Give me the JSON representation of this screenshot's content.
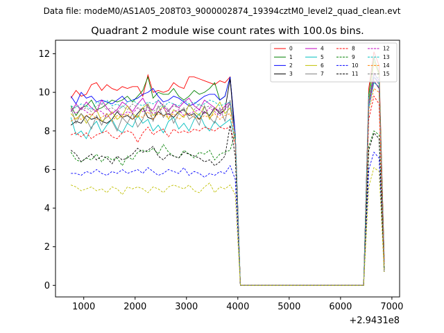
{
  "chart_data": {
    "type": "line",
    "suptitle": "Data file: modeM0/AS1A05_208T03_9000002874_19394cztM0_level2_quad_clean.evt",
    "title": "Quadrant 2 module wise count rates with 100.0s bins.",
    "xlabel": "",
    "ylabel": "",
    "x_offset_text": "+2.9431e8",
    "xlim": [
      450,
      7150
    ],
    "ylim": [
      -0.6,
      12.7
    ],
    "xticks": [
      1000,
      2000,
      3000,
      4000,
      5000,
      6000,
      7000
    ],
    "yticks": [
      0,
      2,
      4,
      6,
      8,
      10,
      12
    ],
    "x": [
      750,
      850,
      950,
      1050,
      1150,
      1250,
      1350,
      1450,
      1550,
      1650,
      1750,
      1850,
      1950,
      2050,
      2150,
      2250,
      2350,
      2450,
      2550,
      2650,
      2750,
      2850,
      2950,
      3050,
      3150,
      3250,
      3350,
      3450,
      3550,
      3650,
      3750,
      3850,
      3950,
      4050,
      4150,
      4250,
      4350,
      4450,
      4550,
      4650,
      4750,
      4850,
      4950,
      5050,
      5150,
      5250,
      5350,
      5450,
      5550,
      5650,
      5750,
      5850,
      5950,
      6050,
      6150,
      6250,
      6350,
      6450,
      6550,
      6650,
      6750,
      6850
    ],
    "legend": {
      "location": "upper right",
      "columns": 4
    },
    "series": [
      {
        "name": "0",
        "color": "#ff0000",
        "dash": "solid",
        "values": [
          9.7,
          10.1,
          9.8,
          9.9,
          10.4,
          10.5,
          10.1,
          10.4,
          10.2,
          10.1,
          10.3,
          10.2,
          10.3,
          10.3,
          9.8,
          10.9,
          10.0,
          10.1,
          10.0,
          10.1,
          10.5,
          10.3,
          10.2,
          10.8,
          10.8,
          10.7,
          10.6,
          10.5,
          10.4,
          10.6,
          10.5,
          10.8,
          7.7,
          0,
          0,
          0,
          0,
          0,
          0,
          0,
          0,
          0,
          0,
          0,
          0,
          0,
          0,
          0,
          0,
          0,
          0,
          0,
          0,
          0,
          0,
          0,
          0,
          0,
          10.2,
          12.1,
          11.4,
          1.4
        ]
      },
      {
        "name": "1",
        "color": "#008000",
        "dash": "solid",
        "values": [
          9.3,
          8.8,
          9.2,
          9.3,
          9.6,
          9.1,
          9.2,
          9.4,
          9.6,
          9.5,
          9.6,
          9.8,
          9.5,
          9.8,
          10.1,
          10.8,
          9.7,
          10.0,
          9.9,
          9.9,
          10.2,
          9.8,
          9.6,
          9.8,
          10.1,
          9.9,
          10.0,
          10.2,
          10.5,
          9.6,
          9.8,
          10.8,
          7.8,
          0,
          0,
          0,
          0,
          0,
          0,
          0,
          0,
          0,
          0,
          0,
          0,
          0,
          0,
          0,
          0,
          0,
          0,
          0,
          0,
          0,
          0,
          0,
          0,
          0,
          9.9,
          11.8,
          11.0,
          1.5
        ]
      },
      {
        "name": "2",
        "color": "#0000ff",
        "dash": "solid",
        "values": [
          9.8,
          9.4,
          10.0,
          9.7,
          9.8,
          9.5,
          9.6,
          9.5,
          9.4,
          9.6,
          9.8,
          9.5,
          9.6,
          9.7,
          9.9,
          10.0,
          10.2,
          9.8,
          9.5,
          9.6,
          9.8,
          9.7,
          9.5,
          9.3,
          9.4,
          9.6,
          9.8,
          9.9,
          9.9,
          9.6,
          9.8,
          10.8,
          7.9,
          0,
          0,
          0,
          0,
          0,
          0,
          0,
          0,
          0,
          0,
          0,
          0,
          0,
          0,
          0,
          0,
          0,
          0,
          0,
          0,
          0,
          0,
          0,
          0,
          0,
          9.7,
          10.8,
          10.5,
          1.2
        ]
      },
      {
        "name": "3",
        "color": "#000000",
        "dash": "solid",
        "values": [
          8.3,
          8.5,
          8.4,
          8.8,
          8.6,
          8.7,
          8.5,
          8.4,
          8.6,
          9.0,
          8.7,
          8.8,
          8.6,
          8.9,
          9.2,
          8.7,
          8.6,
          9.0,
          8.8,
          8.9,
          8.7,
          9.0,
          9.1,
          8.8,
          8.9,
          8.6,
          9.0,
          8.8,
          9.2,
          8.9,
          9.1,
          10.7,
          7.6,
          0,
          0,
          0,
          0,
          0,
          0,
          0,
          0,
          0,
          0,
          0,
          0,
          0,
          0,
          0,
          0,
          0,
          0,
          0,
          0,
          0,
          0,
          0,
          0,
          0,
          9.5,
          10.6,
          10.2,
          0.8
        ]
      },
      {
        "name": "4",
        "color": "#bf00bf",
        "dash": "solid",
        "values": [
          9.0,
          9.4,
          9.1,
          9.5,
          9.2,
          9.0,
          9.6,
          9.2,
          8.9,
          9.1,
          9.5,
          9.3,
          9.0,
          9.4,
          9.7,
          9.2,
          9.1,
          9.6,
          9.3,
          9.0,
          9.4,
          9.2,
          9.5,
          9.7,
          9.3,
          9.1,
          9.6,
          9.4,
          9.2,
          9.0,
          9.3,
          9.5,
          7.9,
          0,
          0,
          0,
          0,
          0,
          0,
          0,
          0,
          0,
          0,
          0,
          0,
          0,
          0,
          0,
          0,
          0,
          0,
          0,
          0,
          0,
          0,
          0,
          0,
          0,
          9.6,
          11.0,
          10.6,
          1.3
        ]
      },
      {
        "name": "5",
        "color": "#00bfbf",
        "dash": "solid",
        "values": [
          8.7,
          7.8,
          8.0,
          7.6,
          8.2,
          8.5,
          7.9,
          8.3,
          8.6,
          8.1,
          7.9,
          8.4,
          8.2,
          8.8,
          8.4,
          8.6,
          8.0,
          8.3,
          7.9,
          8.5,
          8.7,
          8.1,
          8.4,
          8.0,
          8.6,
          8.9,
          8.3,
          8.0,
          8.5,
          8.2,
          8.4,
          8.6,
          7.5,
          0,
          0,
          0,
          0,
          0,
          0,
          0,
          0,
          0,
          0,
          0,
          0,
          0,
          0,
          0,
          0,
          0,
          0,
          0,
          0,
          0,
          0,
          0,
          0,
          0,
          9.2,
          10.5,
          10.3,
          1.1
        ]
      },
      {
        "name": "6",
        "color": "#bfbf00",
        "dash": "solid",
        "values": [
          8.9,
          8.6,
          8.9,
          8.4,
          8.8,
          9.1,
          8.5,
          8.7,
          9.0,
          8.6,
          8.8,
          9.3,
          8.9,
          8.7,
          9.2,
          9.4,
          8.8,
          9.0,
          9.3,
          8.6,
          9.1,
          8.9,
          8.7,
          9.4,
          9.0,
          8.8,
          9.3,
          8.6,
          9.1,
          9.5,
          8.9,
          9.2,
          7.8,
          0,
          0,
          0,
          0,
          0,
          0,
          0,
          0,
          0,
          0,
          0,
          0,
          0,
          0,
          0,
          0,
          0,
          0,
          0,
          0,
          0,
          0,
          0,
          0,
          0,
          9.5,
          11.6,
          10.9,
          1.3
        ]
      },
      {
        "name": "7",
        "color": "#808080",
        "dash": "solid",
        "values": [
          9.2,
          8.4,
          8.9,
          8.6,
          8.1,
          8.8,
          8.3,
          8.9,
          8.5,
          8.0,
          8.7,
          8.4,
          8.9,
          8.2,
          8.6,
          9.4,
          8.5,
          9.3,
          8.7,
          9.1,
          8.4,
          8.9,
          9.2,
          8.6,
          8.8,
          8.3,
          9.3,
          8.7,
          8.4,
          9.2,
          8.5,
          9.6,
          7.6,
          0,
          0,
          0,
          0,
          0,
          0,
          0,
          0,
          0,
          0,
          0,
          0,
          0,
          0,
          0,
          0,
          0,
          0,
          0,
          0,
          0,
          0,
          0,
          0,
          0,
          9.4,
          10.7,
          10.8,
          1.2
        ]
      },
      {
        "name": "8",
        "color": "#ff0000",
        "dash": "dashed",
        "values": [
          7.8,
          7.9,
          7.7,
          7.9,
          7.6,
          7.8,
          7.9,
          8.0,
          7.7,
          7.6,
          7.9,
          8.0,
          7.9,
          7.4,
          7.9,
          8.2,
          7.8,
          8.0,
          8.1,
          7.7,
          8.1,
          7.9,
          8.0,
          7.9,
          8.1,
          8.0,
          8.2,
          8.1,
          8.0,
          8.2,
          8.1,
          8.2,
          7.3,
          0,
          0,
          0,
          0,
          0,
          0,
          0,
          0,
          0,
          0,
          0,
          0,
          0,
          0,
          0,
          0,
          0,
          0,
          0,
          0,
          0,
          0,
          0,
          0,
          0,
          8.6,
          9.8,
          9.4,
          1.1
        ]
      },
      {
        "name": "9",
        "color": "#008000",
        "dash": "dashed",
        "values": [
          6.9,
          6.5,
          6.4,
          6.6,
          6.5,
          6.8,
          6.4,
          6.7,
          6.5,
          6.6,
          6.2,
          6.7,
          6.5,
          6.9,
          7.0,
          6.9,
          7.1,
          6.8,
          7.3,
          6.9,
          6.7,
          6.6,
          7.0,
          6.8,
          6.6,
          6.9,
          6.8,
          7.0,
          6.5,
          6.8,
          6.9,
          7.0,
          7.9,
          0,
          0,
          0,
          0,
          0,
          0,
          0,
          0,
          0,
          0,
          0,
          0,
          0,
          0,
          0,
          0,
          0,
          0,
          0,
          0,
          0,
          0,
          0,
          0,
          0,
          7.2,
          8.0,
          7.8,
          0.9
        ]
      },
      {
        "name": "10",
        "color": "#0000ff",
        "dash": "dashed",
        "values": [
          5.8,
          5.8,
          5.7,
          5.9,
          5.8,
          6.0,
          5.8,
          5.7,
          5.9,
          5.8,
          6.0,
          5.8,
          5.9,
          6.0,
          5.8,
          6.1,
          5.9,
          5.7,
          5.8,
          6.0,
          5.9,
          5.8,
          6.1,
          5.7,
          5.9,
          5.8,
          5.6,
          5.8,
          5.7,
          5.9,
          5.8,
          6.2,
          5.5,
          0,
          0,
          0,
          0,
          0,
          0,
          0,
          0,
          0,
          0,
          0,
          0,
          0,
          0,
          0,
          0,
          0,
          0,
          0,
          0,
          0,
          0,
          0,
          0,
          0,
          6.0,
          6.9,
          6.6,
          0.8
        ]
      },
      {
        "name": "11",
        "color": "#000000",
        "dash": "dashed",
        "values": [
          7.0,
          6.8,
          6.4,
          6.6,
          6.8,
          6.5,
          6.7,
          6.6,
          6.3,
          6.7,
          6.5,
          6.6,
          6.8,
          7.1,
          6.9,
          7.0,
          7.2,
          6.7,
          6.5,
          6.8,
          6.7,
          6.6,
          6.9,
          6.8,
          6.7,
          6.6,
          6.4,
          6.5,
          6.2,
          6.4,
          6.7,
          8.3,
          6.7,
          0,
          0,
          0,
          0,
          0,
          0,
          0,
          0,
          0,
          0,
          0,
          0,
          0,
          0,
          0,
          0,
          0,
          0,
          0,
          0,
          0,
          0,
          0,
          0,
          0,
          7.0,
          7.9,
          7.6,
          0.7
        ]
      },
      {
        "name": "12",
        "color": "#bf00bf",
        "dash": "dashed",
        "values": [
          9.1,
          8.9,
          9.2,
          9.0,
          8.8,
          9.1,
          9.0,
          8.7,
          8.9,
          9.1,
          8.8,
          9.0,
          8.9,
          9.2,
          9.0,
          9.1,
          8.9,
          9.0,
          9.2,
          8.8,
          9.0,
          9.1,
          8.8,
          8.9,
          9.0,
          9.1,
          8.9,
          9.2,
          9.0,
          8.8,
          9.1,
          9.4,
          7.8,
          0,
          0,
          0,
          0,
          0,
          0,
          0,
          0,
          0,
          0,
          0,
          0,
          0,
          0,
          0,
          0,
          0,
          0,
          0,
          0,
          0,
          0,
          0,
          0,
          0,
          9.3,
          10.6,
          10.2,
          1.2
        ]
      },
      {
        "name": "13",
        "color": "#00bfbf",
        "dash": "dashed",
        "values": [
          9.3,
          9.2,
          9.4,
          9.3,
          9.1,
          9.5,
          9.4,
          9.6,
          9.3,
          9.4,
          9.2,
          9.5,
          9.6,
          9.4,
          9.3,
          9.5,
          9.4,
          9.6,
          9.2,
          9.5,
          9.4,
          9.3,
          9.6,
          9.4,
          9.5,
          9.3,
          9.4,
          9.6,
          9.5,
          9.3,
          9.4,
          9.5,
          7.9,
          0,
          0,
          0,
          0,
          0,
          0,
          0,
          0,
          0,
          0,
          0,
          0,
          0,
          0,
          0,
          0,
          0,
          0,
          0,
          0,
          0,
          0,
          0,
          0,
          0,
          9.8,
          10.9,
          10.7,
          1.3
        ]
      },
      {
        "name": "14",
        "color": "#ff8000",
        "dash": "dashed",
        "values": [
          8.5,
          8.7,
          8.6,
          8.8,
          8.9,
          8.6,
          8.7,
          8.9,
          8.5,
          8.8,
          8.7,
          8.9,
          8.6,
          8.8,
          8.7,
          9.0,
          8.6,
          8.9,
          8.8,
          8.7,
          8.9,
          8.6,
          8.8,
          8.9,
          8.7,
          8.6,
          8.8,
          8.7,
          8.9,
          8.6,
          8.8,
          8.9,
          7.5,
          0,
          0,
          0,
          0,
          0,
          0,
          0,
          0,
          0,
          0,
          0,
          0,
          0,
          0,
          0,
          0,
          0,
          0,
          0,
          0,
          0,
          0,
          0,
          0,
          0,
          9.0,
          10.2,
          10.0,
          1.1
        ]
      },
      {
        "name": "15",
        "color": "#808080",
        "dash": "dashed",
        "values": [
          9.0,
          9.3,
          9.1,
          9.2,
          9.0,
          9.3,
          9.4,
          9.1,
          9.2,
          9.0,
          9.3,
          9.1,
          9.4,
          9.2,
          9.1,
          9.3,
          9.0,
          9.2,
          9.4,
          9.1,
          9.3,
          9.2,
          9.0,
          9.3,
          9.1,
          9.4,
          9.2,
          9.3,
          9.1,
          9.0,
          9.2,
          9.4,
          7.7,
          0,
          0,
          0,
          0,
          0,
          0,
          0,
          0,
          0,
          0,
          0,
          0,
          0,
          0,
          0,
          0,
          0,
          0,
          0,
          0,
          0,
          0,
          0,
          0,
          0,
          9.5,
          10.8,
          10.4,
          1.2
        ]
      },
      {
        "name": "",
        "color": "#bfbf00",
        "dash": "dashed",
        "values": [
          5.2,
          5.1,
          4.9,
          5.0,
          5.1,
          4.9,
          5.0,
          4.8,
          5.1,
          5.0,
          4.7,
          5.1,
          5.0,
          5.1,
          5.0,
          4.8,
          5.1,
          5.0,
          4.8,
          5.1,
          5.2,
          5.1,
          5.0,
          5.2,
          4.9,
          4.8,
          5.1,
          5.3,
          4.8,
          5.1,
          5.0,
          5.2,
          4.7,
          0,
          0,
          0,
          0,
          0,
          0,
          0,
          0,
          0,
          0,
          0,
          0,
          0,
          0,
          0,
          0,
          0,
          0,
          0,
          0,
          0,
          0,
          0,
          0,
          0,
          5.1,
          6.1,
          5.9,
          0.7
        ]
      }
    ]
  }
}
